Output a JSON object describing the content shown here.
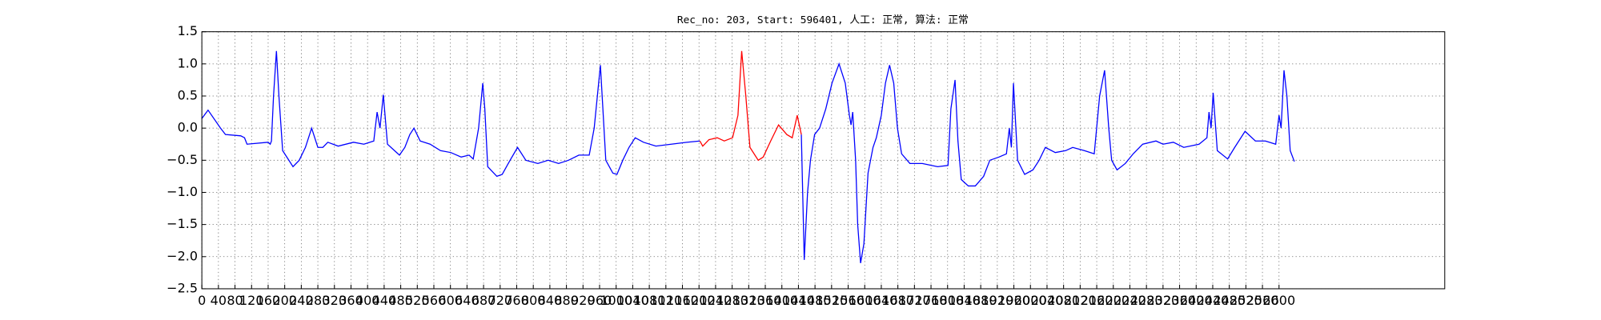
{
  "chart_data": {
    "type": "line",
    "title": "Rec_no: 203, Start: 596401, 人工: 正常, 算法: 正常",
    "xlim": [
      0,
      3000
    ],
    "xticks": [
      0,
      40,
      80,
      120,
      160,
      200,
      240,
      280,
      320,
      360,
      400,
      440,
      480,
      520,
      560,
      600,
      640,
      680,
      720,
      760,
      800,
      840,
      880,
      920,
      960,
      1000,
      1040,
      1080,
      1120,
      1160,
      1200,
      1240,
      1280,
      1320,
      1360,
      1400,
      1440,
      1480,
      1520,
      1560,
      1600,
      1640,
      1680,
      1720,
      1760,
      1800,
      1840,
      1880,
      1920,
      1960,
      2000,
      2040,
      2080,
      2120,
      2160,
      2200,
      2240,
      2280,
      2320,
      2360,
      2400,
      2440,
      2480,
      2520,
      2560,
      2600
    ],
    "ylim": [
      -2.5,
      1.5
    ],
    "yticks": [
      {
        "value": -2.5,
        "label": "−2.5"
      },
      {
        "value": -2.0,
        "label": "−2.0"
      },
      {
        "value": -1.5,
        "label": "−1.5"
      },
      {
        "value": -1.0,
        "label": "−1.0"
      },
      {
        "value": -0.5,
        "label": "−0.5"
      },
      {
        "value": 0,
        "label": "0.0"
      },
      0.5,
      {
        "value": 1.0,
        "label": "1.0"
      },
      1.5
    ],
    "grid": true,
    "series": [
      {
        "color": "#0000ff",
        "x": [
          0,
          15,
          45,
          57,
          94,
          103,
          109,
          160,
          165,
          168,
          173,
          180,
          186,
          195,
          220,
          235,
          250,
          265,
          280,
          292,
          304,
          329,
          366,
          391,
          415,
          423,
          430,
          438,
          448,
          465,
          477,
          490,
          502,
          512,
          527,
          551,
          576,
          601,
          626,
          645,
          655,
          668,
          678,
          683,
          690,
          712,
          725,
          744,
          762,
          782,
          811,
          836,
          861,
          885,
          910,
          935,
          947,
          962,
          975,
          992,
          1002,
          1016,
          1031,
          1046,
          1066,
          1096,
          1133,
          1170,
          1202,
          1300,
          1447,
          1454,
          1462,
          1469,
          1479,
          1491,
          1506,
          1521,
          1538,
          1553,
          1563,
          1567,
          1571,
          1578,
          1583,
          1590,
          1598,
          1608,
          1620,
          1628,
          1640,
          1650,
          1660,
          1670,
          1679,
          1689,
          1709,
          1739,
          1776,
          1801,
          1808,
          1818,
          1825,
          1833,
          1850,
          1867,
          1887,
          1902,
          1924,
          1942,
          1949,
          1954,
          1959,
          1969,
          1986,
          2006,
          2021,
          2036,
          2060,
          2085,
          2102,
          2130,
          2154,
          2167,
          2179,
          2189,
          2196,
          2209,
          2229,
          2248,
          2271,
          2303,
          2320,
          2345,
          2370,
          2407,
          2426,
          2431,
          2436,
          2441,
          2451,
          2476,
          2493,
          2518,
          2543,
          2567,
          2592,
          2600,
          2605,
          2612,
          2619,
          2627,
          2637
        ],
        "values": [
          0.15,
          0.28,
          0.0,
          -0.1,
          -0.12,
          -0.15,
          -0.25,
          -0.22,
          -0.25,
          -0.2,
          0.5,
          1.2,
          0.5,
          -0.35,
          -0.6,
          -0.5,
          -0.3,
          0.0,
          -0.3,
          -0.3,
          -0.22,
          -0.28,
          -0.22,
          -0.25,
          -0.2,
          0.25,
          0.0,
          0.52,
          -0.25,
          -0.35,
          -0.42,
          -0.3,
          -0.1,
          0.0,
          -0.2,
          -0.25,
          -0.35,
          -0.38,
          -0.45,
          -0.42,
          -0.48,
          0.0,
          0.7,
          0.3,
          -0.6,
          -0.75,
          -0.72,
          -0.5,
          -0.3,
          -0.5,
          -0.55,
          -0.5,
          -0.55,
          -0.5,
          -0.42,
          -0.42,
          0.0,
          0.98,
          -0.5,
          -0.7,
          -0.72,
          -0.5,
          -0.3,
          -0.15,
          -0.22,
          -0.28,
          -0.25,
          -0.22,
          -0.2,
          null,
          -0.1,
          -2.05,
          -1.0,
          -0.5,
          -0.1,
          0.0,
          0.3,
          0.7,
          1.0,
          0.7,
          0.2,
          0.05,
          0.25,
          -0.5,
          -1.5,
          -2.1,
          -1.8,
          -0.7,
          -0.3,
          -0.15,
          0.2,
          0.7,
          0.98,
          0.7,
          0.0,
          -0.4,
          -0.55,
          -0.55,
          -0.6,
          -0.58,
          0.3,
          0.75,
          -0.2,
          -0.8,
          -0.9,
          -0.9,
          -0.75,
          -0.5,
          -0.45,
          -0.4,
          0.0,
          -0.3,
          0.7,
          -0.5,
          -0.72,
          -0.65,
          -0.5,
          -0.3,
          -0.38,
          -0.35,
          -0.3,
          -0.35,
          -0.4,
          0.5,
          0.9,
          0.0,
          -0.5,
          -0.65,
          -0.55,
          -0.4,
          -0.25,
          -0.2,
          -0.25,
          -0.22,
          -0.3,
          -0.25,
          -0.15,
          0.25,
          0.0,
          0.55,
          -0.35,
          -0.48,
          -0.3,
          -0.05,
          -0.2,
          -0.2,
          -0.25,
          0.2,
          0.0,
          0.9,
          0.5,
          -0.35,
          -0.52
        ]
      },
      {
        "color": "#ff0000",
        "x": [
          1202,
          1209,
          1224,
          1244,
          1261,
          1281,
          1294,
          1303,
          1313,
          1323,
          1343,
          1355,
          1373,
          1392,
          1412,
          1425,
          1437,
          1447
        ],
        "values": [
          -0.2,
          -0.28,
          -0.18,
          -0.15,
          -0.2,
          -0.15,
          0.2,
          1.2,
          0.5,
          -0.3,
          -0.5,
          -0.45,
          -0.2,
          0.05,
          -0.1,
          -0.15,
          0.2,
          -0.1
        ]
      }
    ]
  }
}
